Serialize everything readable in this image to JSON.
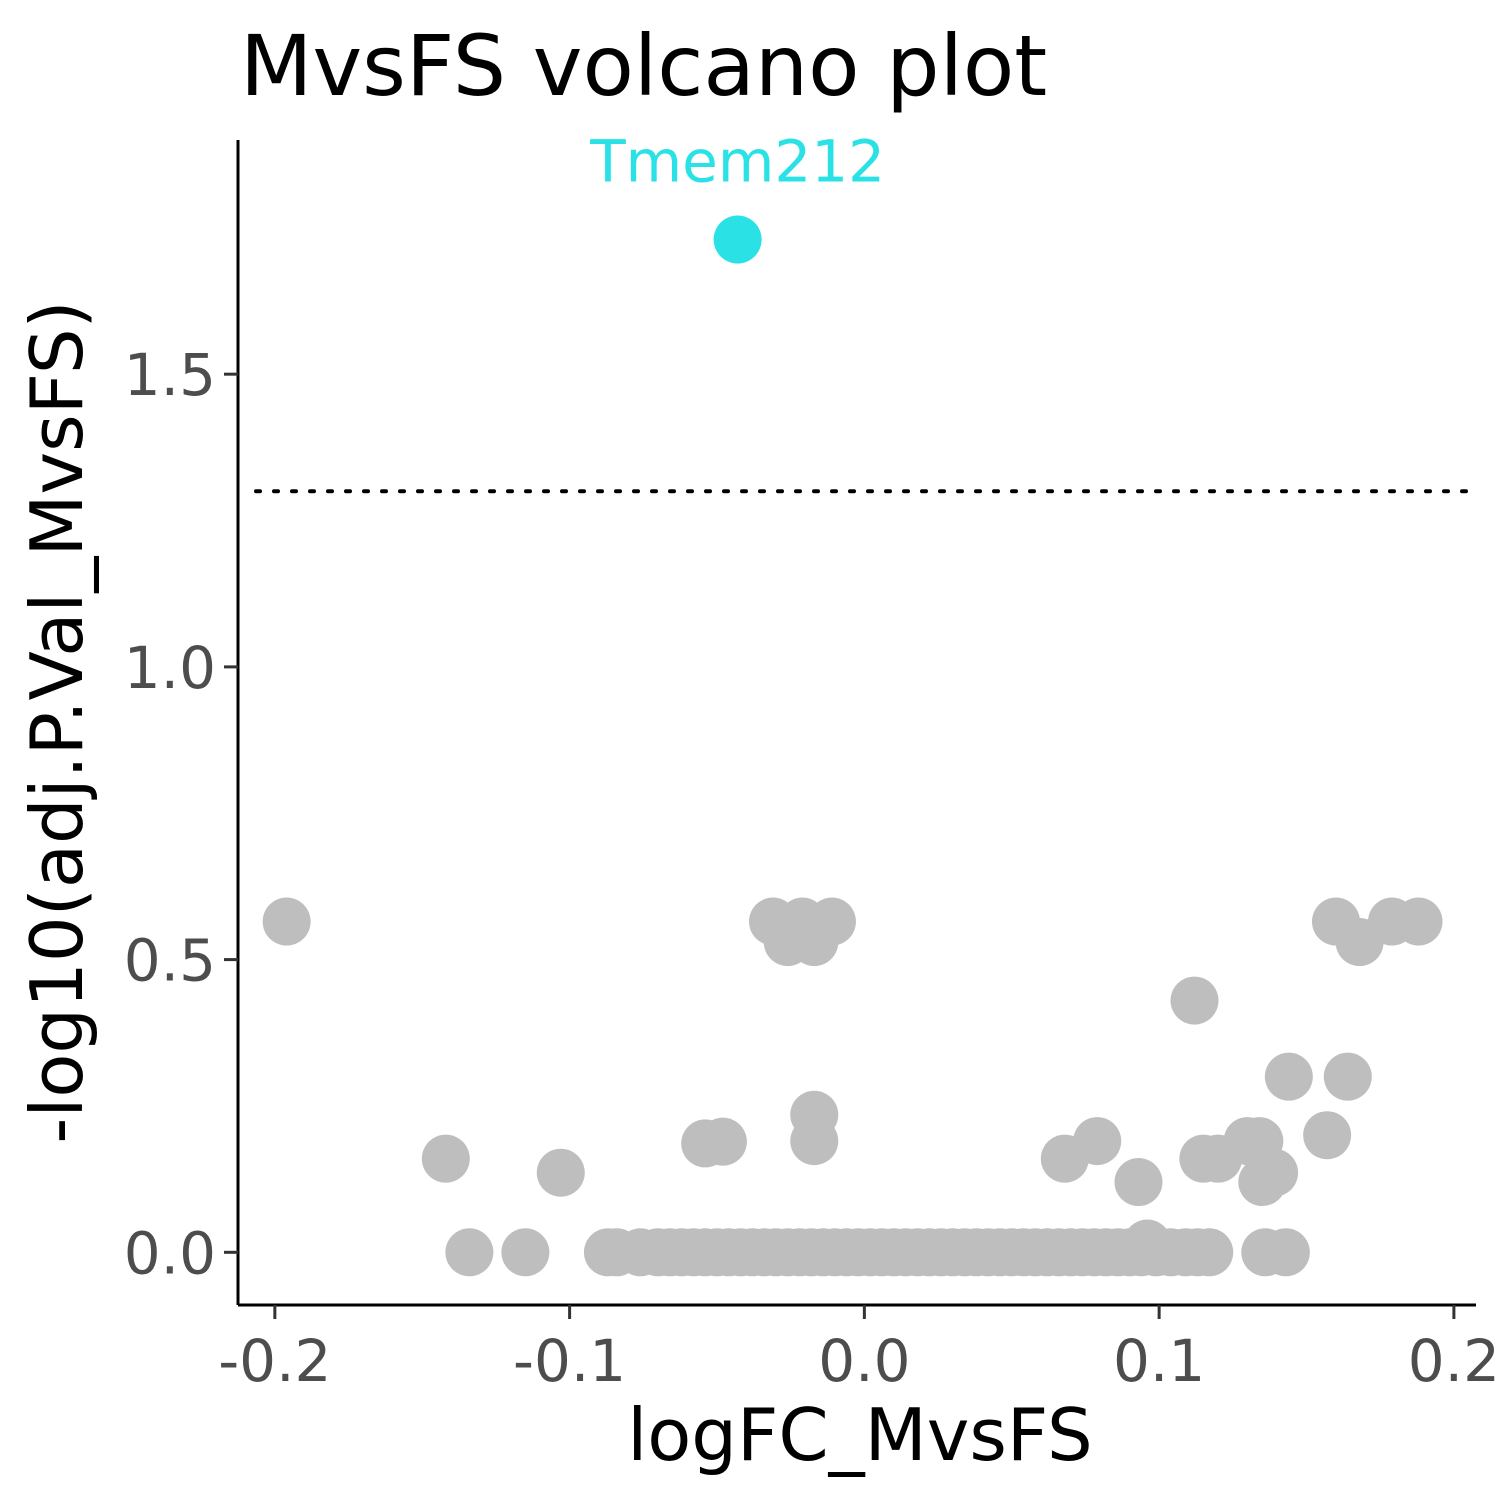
{
  "chart_data": {
    "type": "scatter",
    "title": "MvsFS volcano plot",
    "xlabel": "logFC_MvsFS",
    "ylabel": "-log10(adj.P.Val_MvsFS)",
    "xlim": [
      -0.2125,
      0.2075
    ],
    "ylim": [
      -0.09,
      1.9
    ],
    "xticks": [
      -0.2,
      -0.1,
      0.0,
      0.1,
      0.2
    ],
    "xtick_labels": [
      "-0.2",
      "-0.1",
      "0.0",
      "0.1",
      "0.2"
    ],
    "yticks": [
      0.0,
      0.5,
      1.0,
      1.5
    ],
    "ytick_labels": [
      "0.0",
      "0.5",
      "1.0",
      "1.5"
    ],
    "threshold_y": 1.3,
    "grid": false,
    "legend": "none",
    "colors": {
      "significant": "#2ae2e6",
      "not_significant": "#bebebe",
      "threshold_line": "#000000"
    },
    "series": [
      {
        "group": "significant",
        "points": [
          {
            "x": -0.043,
            "y": 1.73,
            "label": "Tmem212"
          }
        ]
      },
      {
        "group": "not_significant",
        "points": [
          {
            "x": -0.196,
            "y": 0.565
          },
          {
            "x": -0.142,
            "y": 0.16
          },
          {
            "x": -0.134,
            "y": 0.0
          },
          {
            "x": -0.115,
            "y": 0.0
          },
          {
            "x": -0.103,
            "y": 0.136
          },
          {
            "x": -0.054,
            "y": 0.186
          },
          {
            "x": -0.048,
            "y": 0.189
          },
          {
            "x": -0.031,
            "y": 0.565
          },
          {
            "x": -0.026,
            "y": 0.53
          },
          {
            "x": -0.021,
            "y": 0.565
          },
          {
            "x": -0.017,
            "y": 0.53
          },
          {
            "x": -0.011,
            "y": 0.565
          },
          {
            "x": -0.017,
            "y": 0.235
          },
          {
            "x": -0.017,
            "y": 0.19
          },
          {
            "x": 0.068,
            "y": 0.16
          },
          {
            "x": 0.079,
            "y": 0.19
          },
          {
            "x": 0.093,
            "y": 0.12
          },
          {
            "x": 0.112,
            "y": 0.43
          },
          {
            "x": 0.115,
            "y": 0.16
          },
          {
            "x": 0.12,
            "y": 0.16
          },
          {
            "x": 0.13,
            "y": 0.19
          },
          {
            "x": 0.134,
            "y": 0.19
          },
          {
            "x": 0.135,
            "y": 0.12
          },
          {
            "x": 0.139,
            "y": 0.136
          },
          {
            "x": 0.144,
            "y": 0.3
          },
          {
            "x": 0.157,
            "y": 0.2
          },
          {
            "x": 0.16,
            "y": 0.565
          },
          {
            "x": 0.164,
            "y": 0.3
          },
          {
            "x": 0.168,
            "y": 0.53
          },
          {
            "x": 0.179,
            "y": 0.565
          },
          {
            "x": 0.188,
            "y": 0.565
          },
          {
            "x": 0.096,
            "y": 0.015
          },
          {
            "x": -0.087,
            "y": 0.0
          },
          {
            "x": -0.084,
            "y": 0.0
          },
          {
            "x": -0.076,
            "y": 0.0
          },
          {
            "x": -0.07,
            "y": 0.0
          },
          {
            "x": -0.066,
            "y": 0.0
          },
          {
            "x": -0.062,
            "y": 0.0
          },
          {
            "x": -0.058,
            "y": 0.0
          },
          {
            "x": -0.054,
            "y": 0.0
          },
          {
            "x": -0.05,
            "y": 0.0
          },
          {
            "x": -0.046,
            "y": 0.0
          },
          {
            "x": -0.042,
            "y": 0.0
          },
          {
            "x": -0.038,
            "y": 0.0
          },
          {
            "x": -0.034,
            "y": 0.0
          },
          {
            "x": -0.03,
            "y": 0.0
          },
          {
            "x": -0.026,
            "y": 0.0
          },
          {
            "x": -0.022,
            "y": 0.0
          },
          {
            "x": -0.018,
            "y": 0.0
          },
          {
            "x": -0.014,
            "y": 0.0
          },
          {
            "x": -0.01,
            "y": 0.0
          },
          {
            "x": -0.006,
            "y": 0.0
          },
          {
            "x": -0.002,
            "y": 0.0
          },
          {
            "x": 0.002,
            "y": 0.0
          },
          {
            "x": 0.006,
            "y": 0.0
          },
          {
            "x": 0.01,
            "y": 0.0
          },
          {
            "x": 0.014,
            "y": 0.0
          },
          {
            "x": 0.018,
            "y": 0.0
          },
          {
            "x": 0.022,
            "y": 0.0
          },
          {
            "x": 0.026,
            "y": 0.0
          },
          {
            "x": 0.03,
            "y": 0.0
          },
          {
            "x": 0.034,
            "y": 0.0
          },
          {
            "x": 0.038,
            "y": 0.0
          },
          {
            "x": 0.042,
            "y": 0.0
          },
          {
            "x": 0.046,
            "y": 0.0
          },
          {
            "x": 0.05,
            "y": 0.0
          },
          {
            "x": 0.054,
            "y": 0.0
          },
          {
            "x": 0.058,
            "y": 0.0
          },
          {
            "x": 0.062,
            "y": 0.0
          },
          {
            "x": 0.066,
            "y": 0.0
          },
          {
            "x": 0.07,
            "y": 0.0
          },
          {
            "x": 0.074,
            "y": 0.0
          },
          {
            "x": 0.078,
            "y": 0.0
          },
          {
            "x": 0.082,
            "y": 0.0
          },
          {
            "x": 0.086,
            "y": 0.0
          },
          {
            "x": 0.09,
            "y": 0.0
          },
          {
            "x": 0.094,
            "y": 0.0
          },
          {
            "x": 0.099,
            "y": 0.0
          },
          {
            "x": 0.104,
            "y": 0.0
          },
          {
            "x": 0.109,
            "y": 0.0
          },
          {
            "x": 0.113,
            "y": 0.0
          },
          {
            "x": 0.117,
            "y": 0.0
          },
          {
            "x": 0.136,
            "y": 0.0
          },
          {
            "x": 0.143,
            "y": 0.0
          }
        ]
      }
    ]
  }
}
